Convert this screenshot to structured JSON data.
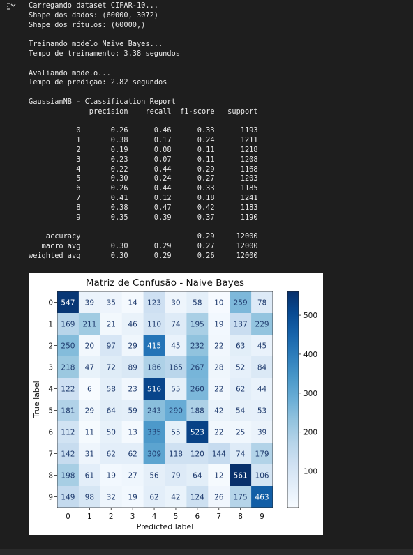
{
  "log": [
    "Carregando dataset CIFAR-10...",
    "Shape dos dados: (60000, 3072)",
    "Shape dos rótulos: (60000,)",
    "",
    "Treinando modelo Naive Bayes...",
    "Tempo de treinamento: 3.38 segundos",
    "",
    "Avaliando modelo...",
    "Tempo de predição: 2.82 segundos",
    "",
    "GaussianNB - Classification Report",
    "              precision    recall  f1-score   support",
    "",
    "           0       0.26      0.46      0.33      1193",
    "           1       0.38      0.17      0.24      1211",
    "           2       0.19      0.08      0.11      1218",
    "           3       0.23      0.07      0.11      1208",
    "           4       0.22      0.44      0.29      1168",
    "           5       0.30      0.24      0.27      1203",
    "           6       0.26      0.44      0.33      1185",
    "           7       0.41      0.12      0.18      1241",
    "           8       0.38      0.47      0.42      1183",
    "           9       0.35      0.39      0.37      1190",
    "",
    "    accuracy                           0.29     12000",
    "   macro avg       0.30      0.29      0.27     12000",
    "weighted avg       0.30      0.29      0.26     12000"
  ],
  "icons": {
    "output_toggle": "output-collapse-icon"
  },
  "chart_data": {
    "type": "heatmap",
    "title": "Matriz de Confusão - Naive Bayes",
    "xlabel": "Predicted label",
    "ylabel": "True label",
    "x_categories": [
      "0",
      "1",
      "2",
      "3",
      "4",
      "5",
      "6",
      "7",
      "8",
      "9"
    ],
    "y_categories": [
      "0",
      "1",
      "2",
      "3",
      "4",
      "5",
      "6",
      "7",
      "8",
      "9"
    ],
    "matrix": [
      [
        547,
        39,
        35,
        14,
        123,
        30,
        58,
        10,
        259,
        78
      ],
      [
        169,
        211,
        21,
        46,
        110,
        74,
        195,
        19,
        137,
        229
      ],
      [
        250,
        20,
        97,
        29,
        415,
        45,
        232,
        22,
        63,
        45
      ],
      [
        218,
        47,
        72,
        89,
        186,
        165,
        267,
        28,
        52,
        84
      ],
      [
        122,
        6,
        58,
        23,
        516,
        55,
        260,
        22,
        62,
        44
      ],
      [
        181,
        29,
        64,
        59,
        243,
        290,
        188,
        42,
        54,
        53
      ],
      [
        112,
        11,
        50,
        13,
        335,
        55,
        523,
        22,
        25,
        39
      ],
      [
        142,
        31,
        62,
        62,
        309,
        118,
        120,
        144,
        74,
        179
      ],
      [
        198,
        61,
        19,
        27,
        56,
        79,
        64,
        12,
        561,
        106
      ],
      [
        149,
        98,
        32,
        19,
        62,
        42,
        124,
        26,
        175,
        463
      ]
    ],
    "colormap": "Blues",
    "colorbar_ticks": [
      "100",
      "200",
      "300",
      "400",
      "500"
    ],
    "colorbar_range": [
      6,
      561
    ]
  }
}
